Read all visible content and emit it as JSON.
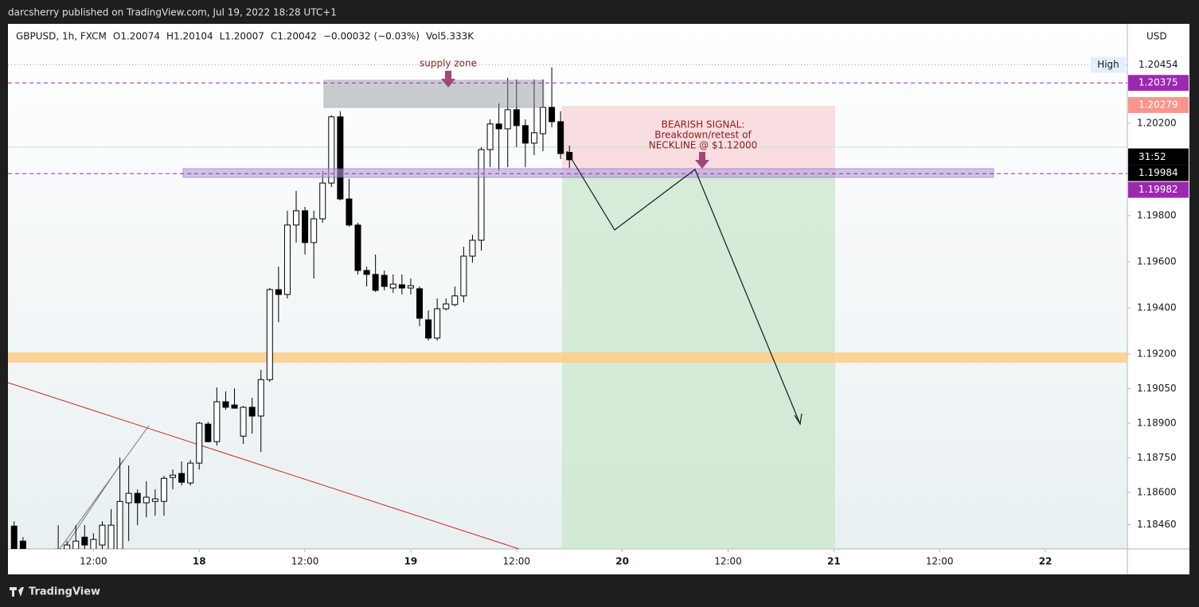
{
  "header": "darcsherry published on TradingView.com, Jul 19, 2022 18:28 UTC+1",
  "footer": "TradingView",
  "chart_data": {
    "type": "candlestick",
    "legend": [
      "GBPUSD, 1h, FXCM",
      "O1.20074",
      "H1.20104",
      "L1.20007",
      "C1.20042",
      "−0.00032 (−0.03%)",
      "Vol5.333K"
    ],
    "currency": "USD",
    "open": [
      1.18454,
      1.18389,
      1.1832,
      1.18285,
      1.18251,
      1.1832,
      1.18354,
      1.18354,
      1.18406,
      1.18354,
      1.18372,
      1.18354,
      1.18354,
      1.18555,
      1.18596,
      1.18555,
      1.18561,
      1.18561,
      1.18665,
      1.18682,
      1.18641,
      1.18727,
      1.18896,
      1.1882,
      1.18993,
      1.18979,
      1.18844,
      1.18969,
      1.18931,
      1.19089,
      1.19479,
      1.19458,
      1.19759,
      1.19821,
      1.19683,
      1.19786,
      1.19941,
      1.20228,
      1.19872,
      1.19759,
      1.19562,
      1.19545,
      1.19541,
      1.19486,
      1.195,
      1.19486,
      1.19483,
      1.19348,
      1.19269,
      1.19396,
      1.19414,
      1.19452,
      1.19624,
      1.19693,
      1.20086,
      1.20197,
      1.20176,
      1.20259,
      1.2019,
      1.20114,
      1.20155,
      1.20269,
      1.20207,
      1.20074
    ],
    "high": [
      1.18475,
      1.18406,
      1.18354,
      1.18303,
      1.1832,
      1.18458,
      1.18389,
      1.18458,
      1.18458,
      1.18423,
      1.18475,
      1.18527,
      1.18751,
      1.18717,
      1.18613,
      1.18648,
      1.18613,
      1.18672,
      1.18699,
      1.18734,
      1.18741,
      1.18906,
      1.18906,
      1.19055,
      1.19038,
      1.19051,
      1.18975,
      1.1901,
      1.19131,
      1.19486,
      1.19579,
      1.19821,
      1.19907,
      1.19838,
      1.19821,
      1.19993,
      1.20235,
      1.20252,
      1.19959,
      1.19769,
      1.19579,
      1.19631,
      1.19562,
      1.19545,
      1.19545,
      1.19527,
      1.19493,
      1.19389,
      1.19441,
      1.19441,
      1.19493,
      1.19665,
      1.19717,
      1.20097,
      1.20217,
      1.20286,
      1.20397,
      1.2039,
      1.20217,
      1.2039,
      1.2039,
      1.20442,
      1.20252,
      1.20104
    ],
    "low": [
      1.1832,
      1.1832,
      1.18251,
      1.18234,
      1.18234,
      1.18285,
      1.1832,
      1.1832,
      1.18337,
      1.1832,
      1.1832,
      1.1832,
      1.1832,
      1.18389,
      1.18458,
      1.18492,
      1.18499,
      1.18499,
      1.18613,
      1.1863,
      1.1863,
      1.18699,
      1.18817,
      1.18803,
      1.18958,
      1.18965,
      1.1881,
      1.18855,
      1.18775,
      1.19079,
      1.19338,
      1.19441,
      1.19683,
      1.19631,
      1.19527,
      1.19769,
      1.19924,
      1.19866,
      1.19752,
      1.19545,
      1.19493,
      1.19469,
      1.19476,
      1.19465,
      1.19458,
      1.19458,
      1.1932,
      1.19258,
      1.19258,
      1.19389,
      1.19407,
      1.19424,
      1.19596,
      1.19648,
      1.2001,
      1.19993,
      1.2001,
      1.20097,
      1.2001,
      1.20062,
      1.20079,
      1.20183,
      1.20045,
      1.20007
    ],
    "close": [
      1.18354,
      1.18354,
      1.18285,
      1.18251,
      1.18303,
      1.18354,
      1.18372,
      1.18389,
      1.18372,
      1.18396,
      1.18458,
      1.18458,
      1.18561,
      1.18596,
      1.18555,
      1.18579,
      1.18572,
      1.18661,
      1.18675,
      1.18644,
      1.18727,
      1.189,
      1.1882,
      1.18993,
      1.18969,
      1.18965,
      1.18969,
      1.18931,
      1.19089,
      1.19479,
      1.19458,
      1.19759,
      1.19821,
      1.19683,
      1.19786,
      1.19941,
      1.20228,
      1.19872,
      1.19759,
      1.19562,
      1.19545,
      1.19476,
      1.19493,
      1.19503,
      1.19486,
      1.19496,
      1.19355,
      1.19269,
      1.19396,
      1.19417,
      1.19452,
      1.19624,
      1.19693,
      1.20086,
      1.20197,
      1.20176,
      1.20259,
      1.2019,
      1.20114,
      1.20159,
      1.20269,
      1.20207,
      1.20069,
      1.20042
    ],
    "up_color": "#ffffff",
    "down_color": "#000000",
    "xlim": [
      -0.7,
      126.3
    ],
    "xticks": [
      {
        "value": 9,
        "label": "12:00"
      },
      {
        "value": 21,
        "label": "18"
      },
      {
        "value": 33,
        "label": "12:00"
      },
      {
        "value": 45,
        "label": "19"
      },
      {
        "value": 57,
        "label": "12:00"
      },
      {
        "value": 69,
        "label": "20"
      },
      {
        "value": 81,
        "label": "12:00"
      },
      {
        "value": 93,
        "label": "21"
      },
      {
        "value": 105,
        "label": "12:00"
      },
      {
        "value": 117,
        "label": "22"
      }
    ],
    "ylim": [
      1.18355,
      1.20631
    ],
    "yticks": [
      {
        "value": 1.202,
        "label": "1.20200"
      },
      {
        "value": 1.198,
        "label": "1.19800"
      },
      {
        "value": 1.196,
        "label": "1.19600"
      },
      {
        "value": 1.194,
        "label": "1.19400"
      },
      {
        "value": 1.192,
        "label": "1.19200"
      },
      {
        "value": 1.1905,
        "label": "1.19050"
      },
      {
        "value": 1.189,
        "label": "1.18900"
      },
      {
        "value": 1.1875,
        "label": "1.18750"
      },
      {
        "value": 1.186,
        "label": "1.18600"
      },
      {
        "value": 1.1846,
        "label": "1.18460"
      }
    ],
    "price_labels": [
      {
        "value": 1.20454,
        "label": "1.20454",
        "color": "#ffffff",
        "text_color": "#131722",
        "line": "dotted"
      },
      {
        "value": 1.20375,
        "label": "1.20375",
        "color": "#9c27b0",
        "text_color": "#ffffff",
        "line": "dashed"
      },
      {
        "value": 1.20279,
        "label": "1.20279",
        "color": "#f7958c",
        "text_color": "#ffffff"
      },
      {
        "value": 1.19984,
        "label": "1.19984",
        "color": "#000000",
        "text_color": "#ffffff"
      },
      {
        "value": 1.19982,
        "label": "1.19982",
        "color": "#9c27b0",
        "text_color": "#ffffff",
        "line": "dashed"
      }
    ],
    "high_label": "High",
    "countdown": "31:52",
    "annotations": {
      "supply": "supply zone",
      "signal": [
        "BEARISH SIGNAL:",
        "Breakdown/retest of",
        "NECKLINE @ $1.12000"
      ]
    }
  }
}
